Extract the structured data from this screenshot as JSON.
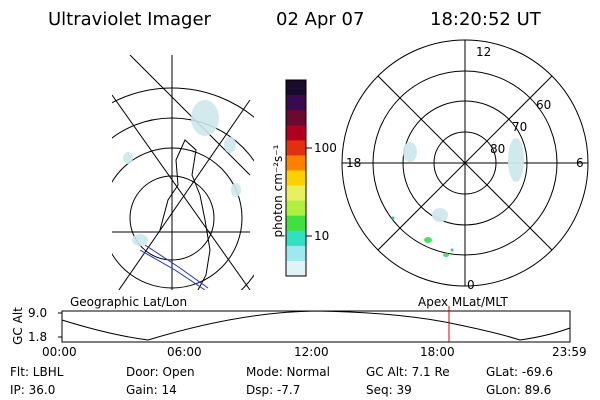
{
  "header": {
    "instrument": "Ultraviolet Imager",
    "date": "02 Apr 07",
    "time": "18:20:52 UT"
  },
  "colorbar": {
    "unit_label": "photon cm⁻²s⁻¹",
    "ticks": [
      "100",
      "10"
    ],
    "colors": [
      "#1a0a2e",
      "#3a0a50",
      "#6a0a30",
      "#b00020",
      "#e03010",
      "#ff8000",
      "#ffd000",
      "#e8f060",
      "#b0f040",
      "#40e040",
      "#30e0c0",
      "#a0e8f0",
      "#e0f4f8"
    ]
  },
  "polar_plot": {
    "mlt_labels": [
      "12",
      "18",
      "6",
      "0"
    ],
    "lat_labels": [
      "60",
      "70",
      "80"
    ]
  },
  "map_labels": {
    "left": "Geographic Lat/Lon",
    "right": "Apex  MLat/MLT"
  },
  "timeline": {
    "ylabel": "GC Alt",
    "y_ticks": [
      "9.0",
      "1.8"
    ],
    "x_ticks": [
      "00:00",
      "06:00",
      "12:00",
      "18:00",
      "23:59"
    ],
    "marker_time": "18:20:52"
  },
  "info": {
    "filter": "Flt: LBHL",
    "door": "Door: Open",
    "mode": "Mode: Normal",
    "gc_alt": "GC Alt: 7.1 Re",
    "glat": "GLat:  -69.6",
    "ip": "IP: 36.0",
    "gain": "Gain: 14",
    "dsp": "Dsp:    -7.7",
    "seq": "Seq: 39",
    "glon": "GLon:  89.6"
  },
  "accent_colors": {
    "marker": "#e00000",
    "track": "#2030c0"
  }
}
